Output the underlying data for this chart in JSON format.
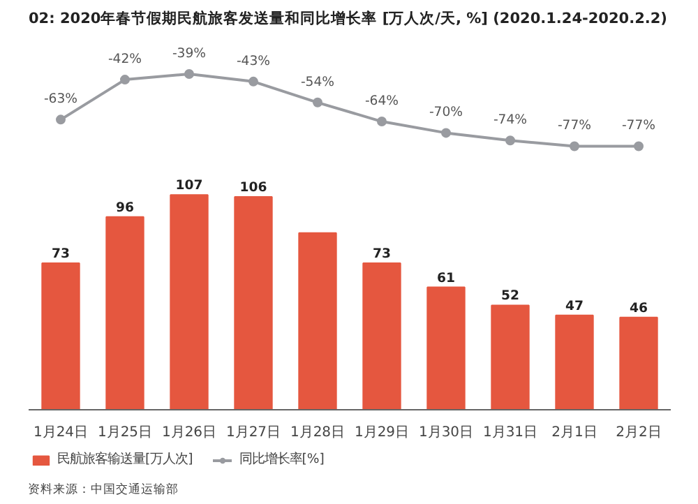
{
  "chart_data": [
    {
      "type": "line",
      "title": "02: 2020年春节假期民航旅客发送量和同比增长率 [万人次/天, %] (2020.1.24-2020.2.2)",
      "categories": [
        null,
        null,
        null,
        null,
        null,
        null,
        null,
        null,
        null,
        null
      ],
      "series": [
        {
          "name": "同比增长率[%]",
          "color": "#999ba0",
          "marker": "circle",
          "values": [
            -63,
            -42,
            -39,
            -43,
            -54,
            -64,
            -70,
            -74,
            -77,
            -77
          ],
          "value_labels": [
            "-63%",
            "-42%",
            "-39%",
            "-43%",
            "-54%",
            "-64%",
            "-70%",
            "-74%",
            "-77%",
            "-77%"
          ]
        }
      ],
      "tick_labels": false,
      "legend": "bottom left"
    },
    {
      "type": "bar",
      "categories": [
        "1月24日",
        "1月25日",
        "1月26日",
        "1月27日",
        "1月28日",
        "1月29日",
        "1月30日",
        "1月31日",
        "2月1日",
        "2月2日"
      ],
      "series": [
        {
          "name": "民航旅客输送量[万人次]",
          "color": "#e5573f",
          "values": [
            73,
            96,
            107,
            106,
            88,
            73,
            61,
            52,
            47,
            46
          ],
          "value_labels": [
            "73",
            "96",
            "107",
            "106",
            null,
            "73",
            "61",
            "52",
            "47",
            "46"
          ]
        }
      ],
      "tick_labels": "x",
      "legend": "bottom left",
      "annotations": [
        "资料来源：中国交通运输部"
      ]
    }
  ]
}
